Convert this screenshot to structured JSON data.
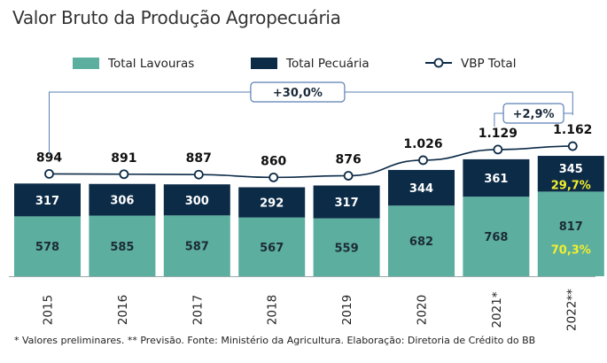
{
  "title": "Valor Bruto da Produção Agropecuária",
  "footnote": "* Valores preliminares. ** Previsão. Fonte: Ministério da Agricultura. Elaboração: Diretoria de Crédito do BB",
  "colors": {
    "lavouras": "#5cae9f",
    "pecuaria": "#0c2b47",
    "line": "#0c2b47",
    "bracket": "#5a7fb5",
    "highlight": "#f2ef2e"
  },
  "legend": [
    {
      "label": "Total Lavouras",
      "type": "bar",
      "color": "#5cae9f"
    },
    {
      "label": "Total Pecuária",
      "type": "bar",
      "color": "#0c2b47"
    },
    {
      "label": "VBP Total",
      "type": "line-marker",
      "color": "#0c2b47"
    }
  ],
  "annotations": {
    "growth_total": "+30,0%",
    "growth_year": "+2,9%",
    "share_pecuaria": "29,7%",
    "share_lavouras": "70,3%"
  },
  "chart_data": {
    "type": "bar",
    "stacked": true,
    "categories": [
      "2015",
      "2016",
      "2017",
      "2018",
      "2019",
      "2020",
      "2021*",
      "2022**"
    ],
    "series": [
      {
        "name": "Total Lavouras",
        "values": [
          578,
          585,
          587,
          567,
          559,
          682,
          768,
          817
        ],
        "labels": [
          "578",
          "585",
          "587",
          "567",
          "559",
          "682",
          "768",
          "817"
        ]
      },
      {
        "name": "Total Pecuária",
        "values": [
          317,
          306,
          300,
          292,
          317,
          344,
          361,
          345
        ],
        "labels": [
          "317",
          "306",
          "300",
          "292",
          "317",
          "344",
          "361",
          "345"
        ]
      }
    ],
    "line": {
      "name": "VBP Total",
      "values": [
        894,
        891,
        887,
        860,
        876,
        1026,
        1129,
        1162
      ],
      "labels": [
        "894",
        "891",
        "887",
        "860",
        "876",
        "1.026",
        "1.129",
        "1.162"
      ]
    }
  }
}
